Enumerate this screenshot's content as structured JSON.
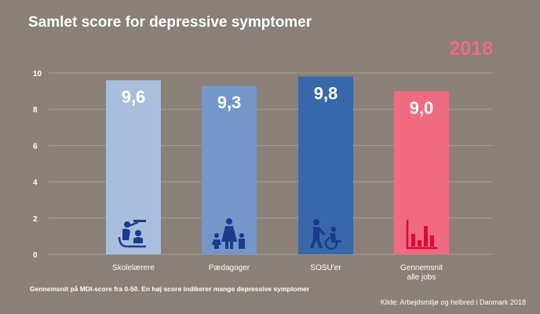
{
  "header": {
    "title": "Samlet score for depressive symptomer",
    "year": "2018"
  },
  "footer": {
    "note": "Gennemsnit på MDI-score fra 0-50. En høj score indikerer mange depressive symptomer",
    "source": "Kilde: Arbejdsmiljø og helbred i Danmark 2018"
  },
  "chart_data": {
    "type": "bar",
    "categories": [
      "Skolelærere",
      "Pædagoger",
      "SOSU'er",
      "Gennemsnit alle jobs"
    ],
    "category_lines": [
      [
        "Skolelærere"
      ],
      [
        "Pædagoger"
      ],
      [
        "SOSU'er"
      ],
      [
        "Gennemsnit",
        "alle jobs"
      ]
    ],
    "values": [
      9.6,
      9.3,
      9.8,
      9.0
    ],
    "value_labels": [
      "9,6",
      "9,3",
      "9,8",
      "9,0"
    ],
    "colors": [
      "#a9bedd",
      "#7496c8",
      "#3868aa",
      "#f06a82"
    ],
    "icon_colors": [
      "#1a3c8c",
      "#1a3c8c",
      "#1a3c8c",
      "#d80c30"
    ],
    "icons": [
      "teacher-icon",
      "family-icon",
      "caregiver-wheelchair-icon",
      "bar-chart-icon"
    ],
    "ylim": [
      0,
      10
    ],
    "yticks": [
      0,
      2,
      4,
      6,
      8,
      10
    ],
    "grid": true
  }
}
